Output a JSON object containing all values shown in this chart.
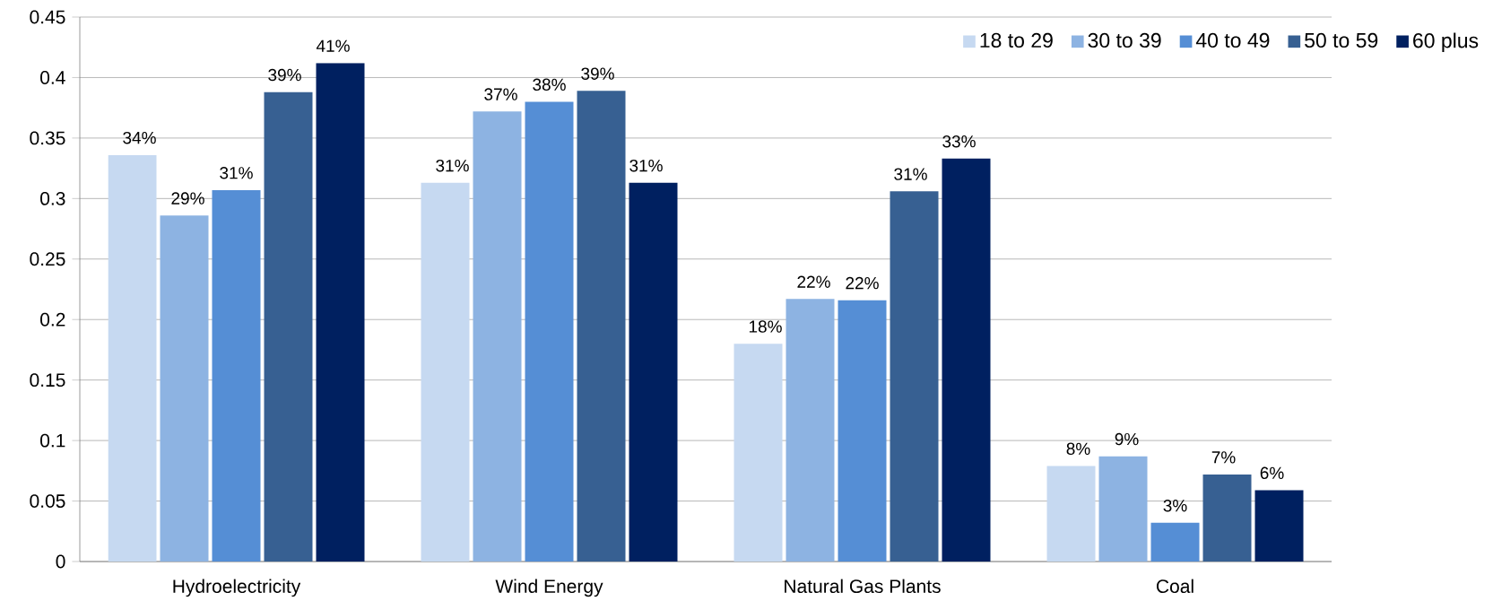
{
  "chart_data": {
    "type": "bar",
    "categories": [
      "Hydroelectricity",
      "Wind Energy",
      "Natural Gas Plants",
      "Coal"
    ],
    "series": [
      {
        "name": "18 to 29",
        "color": "#c6d9f1",
        "values": [
          0.336,
          0.313,
          0.18,
          0.079
        ],
        "value_labels": [
          "34%",
          "31%",
          "18%",
          "8%"
        ]
      },
      {
        "name": "30 to 39",
        "color": "#8db3e2",
        "values": [
          0.286,
          0.372,
          0.217,
          0.087
        ],
        "value_labels": [
          "29%",
          "37%",
          "22%",
          "9%"
        ]
      },
      {
        "name": "40 to 49",
        "color": "#558ed5",
        "values": [
          0.307,
          0.38,
          0.216,
          0.032
        ],
        "value_labels": [
          "31%",
          "38%",
          "22%",
          "3%"
        ]
      },
      {
        "name": "50 to 59",
        "color": "#376092",
        "values": [
          0.388,
          0.389,
          0.306,
          0.072
        ],
        "value_labels": [
          "39%",
          "39%",
          "31%",
          "7%"
        ]
      },
      {
        "name": "60 plus",
        "color": "#002060",
        "values": [
          0.412,
          0.313,
          0.333,
          0.059
        ],
        "value_labels": [
          "41%",
          "31%",
          "33%",
          "6%"
        ]
      }
    ],
    "ylim": [
      0,
      0.45
    ],
    "yticks": [
      0,
      0.05,
      0.1,
      0.15,
      0.2,
      0.25,
      0.3,
      0.35,
      0.4,
      0.45
    ],
    "grid": "y",
    "legend": "top right"
  }
}
